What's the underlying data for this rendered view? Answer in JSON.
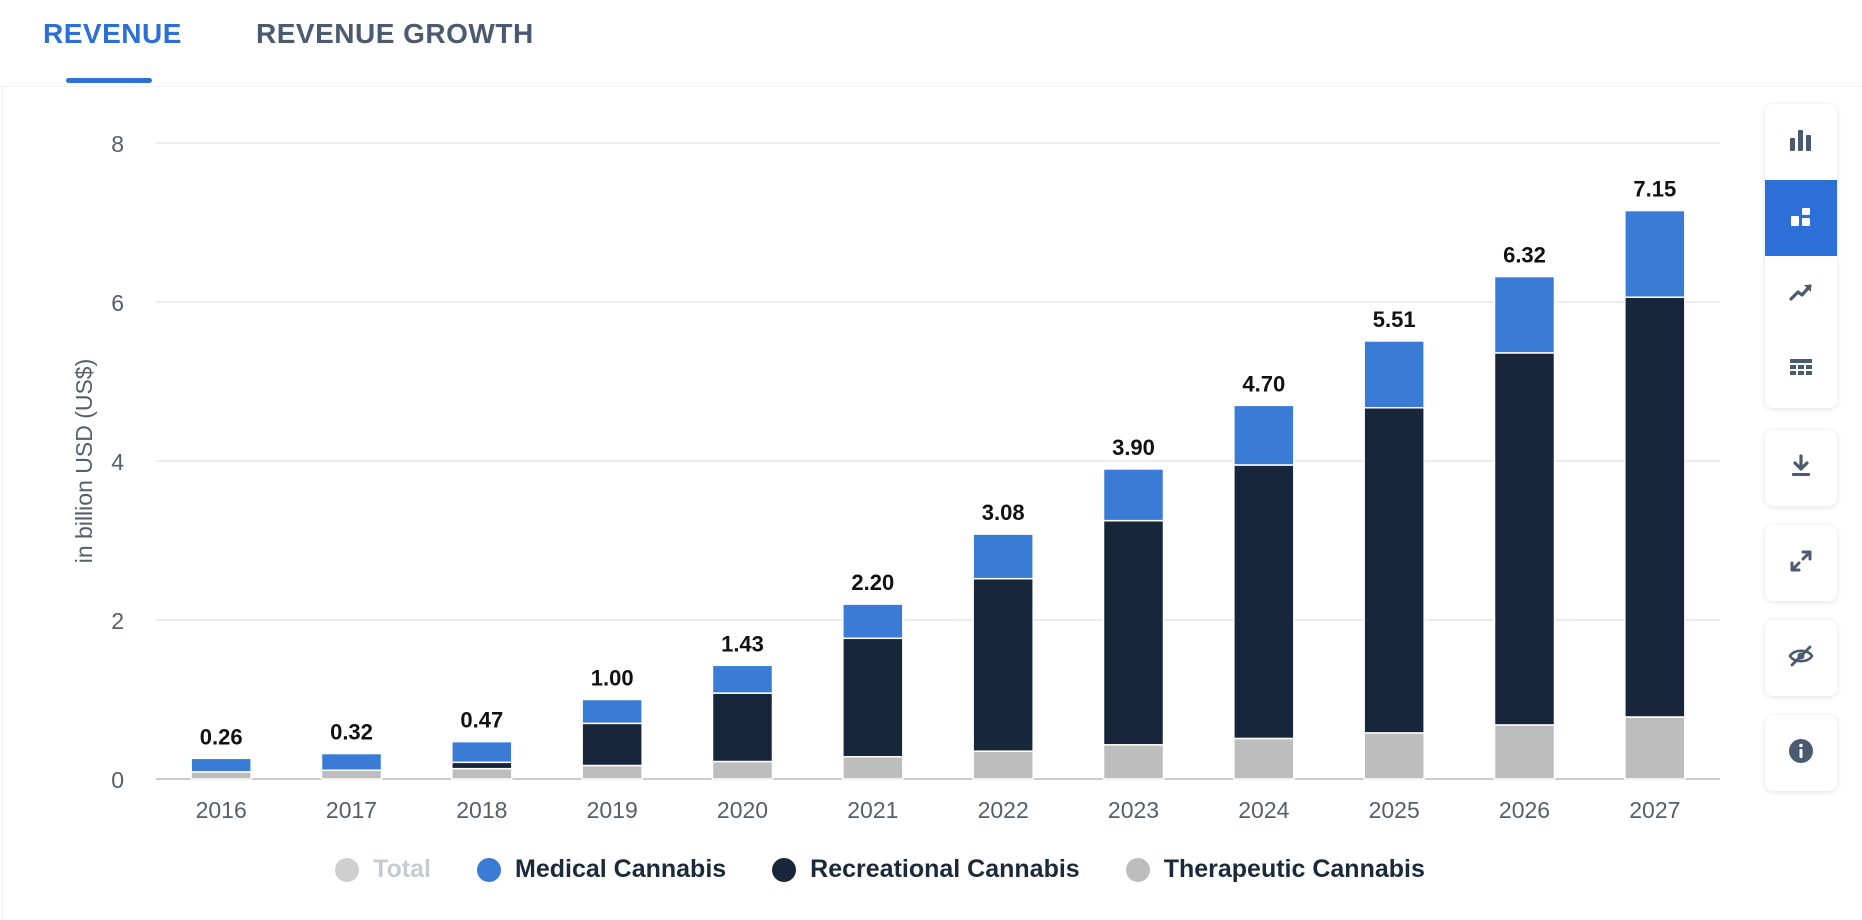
{
  "tabs": [
    {
      "label": "REVENUE",
      "active": true
    },
    {
      "label": "REVENUE GROWTH",
      "active": false
    }
  ],
  "chart_data": {
    "type": "bar",
    "stacked": true,
    "ylabel": "in billion USD (US$)",
    "ylim": [
      0,
      8
    ],
    "yticks": [
      0,
      2,
      4,
      6,
      8
    ],
    "grid": true,
    "legend_position": "bottom",
    "categories": [
      "2016",
      "2017",
      "2018",
      "2019",
      "2020",
      "2021",
      "2022",
      "2023",
      "2024",
      "2025",
      "2026",
      "2027"
    ],
    "series": [
      {
        "name": "Therapeutic Cannabis",
        "color": "#bdbdbd",
        "values": [
          0.09,
          0.11,
          0.13,
          0.17,
          0.22,
          0.28,
          0.35,
          0.43,
          0.51,
          0.58,
          0.68,
          0.78
        ]
      },
      {
        "name": "Recreational Cannabis",
        "color": "#17263b",
        "values": [
          0.0,
          0.0,
          0.08,
          0.53,
          0.86,
          1.49,
          2.17,
          2.82,
          3.44,
          4.09,
          4.68,
          5.28
        ]
      },
      {
        "name": "Medical Cannabis",
        "color": "#3a7bd5",
        "values": [
          0.17,
          0.21,
          0.26,
          0.3,
          0.35,
          0.43,
          0.56,
          0.65,
          0.75,
          0.84,
          0.96,
          1.09
        ]
      }
    ],
    "totals": {
      "name": "Total",
      "visible": false,
      "values": [
        "0.26",
        "0.32",
        "0.47",
        "1.00",
        "1.43",
        "2.20",
        "3.08",
        "3.90",
        "4.70",
        "5.51",
        "6.32",
        "7.15"
      ]
    }
  },
  "legend": [
    {
      "label": "Total",
      "color": "#cfcfcf",
      "off": true
    },
    {
      "label": "Medical Cannabis",
      "color": "#3a7bd5",
      "off": false
    },
    {
      "label": "Recreational Cannabis",
      "color": "#17263b",
      "off": false
    },
    {
      "label": "Therapeutic Cannabis",
      "color": "#bdbdbd",
      "off": false
    }
  ],
  "toolbar": {
    "groups": [
      [
        "bar-chart-icon",
        "stacked-bar-icon",
        "trend-line-icon",
        "table-icon"
      ],
      [
        "download-icon"
      ],
      [
        "expand-icon"
      ],
      [
        "hide-icon"
      ],
      [
        "info-icon"
      ]
    ],
    "active": "stacked-bar-icon"
  },
  "colors": {
    "accent": "#2c6fd6",
    "axis_text": "#555e6b"
  }
}
